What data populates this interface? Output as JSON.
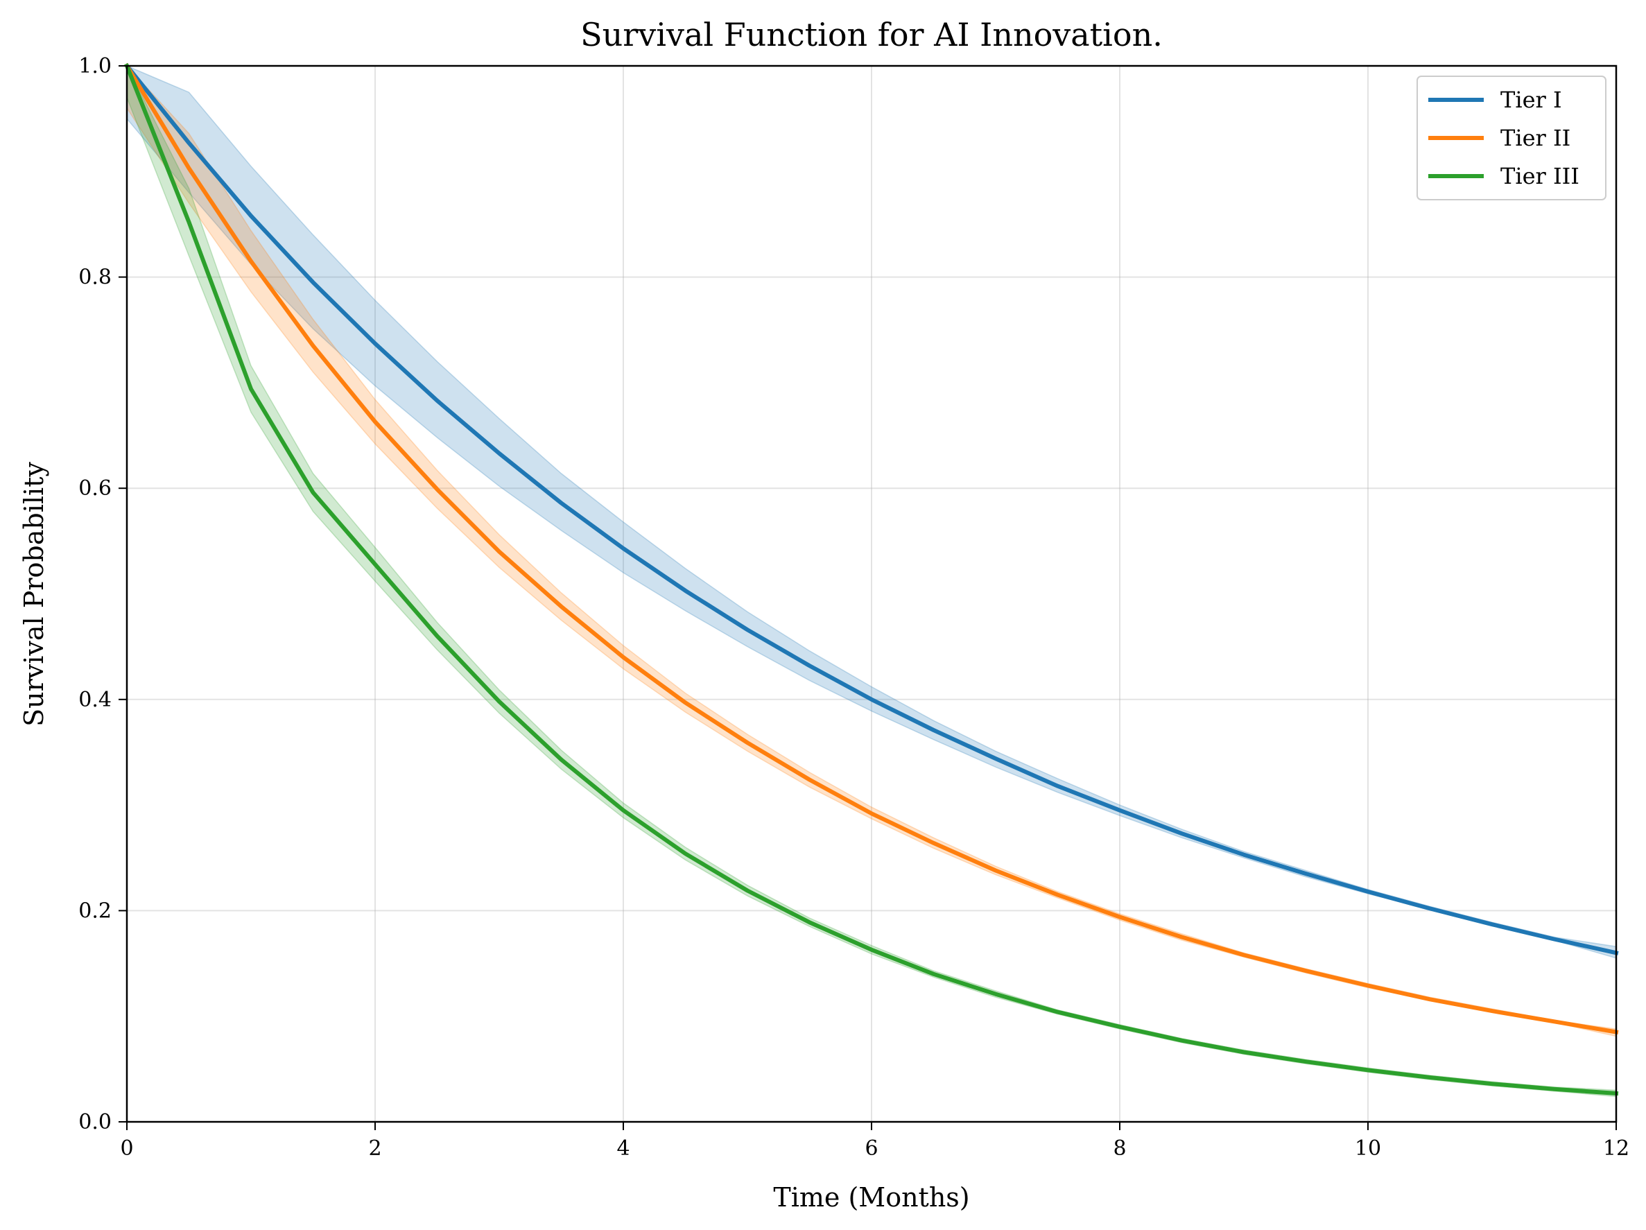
{
  "chart_data": {
    "type": "line",
    "title": "Survival Function for AI Innovation.",
    "xlabel": "Time (Months)",
    "ylabel": "Survival Probability",
    "xlim": [
      0,
      12
    ],
    "ylim": [
      0,
      1.0
    ],
    "xticks": [
      0,
      2,
      4,
      6,
      8,
      10,
      12
    ],
    "xtick_labels": [
      "0",
      "2",
      "4",
      "6",
      "8",
      "10",
      "12"
    ],
    "yticks": [
      0,
      0.2,
      0.4,
      0.6,
      0.8,
      1.0
    ],
    "ytick_labels": [
      "0.0",
      "0.2",
      "0.4",
      "0.6",
      "0.8",
      "1.0"
    ],
    "grid": true,
    "legend_position": "top-right",
    "x": [
      0,
      0.5,
      1,
      1.5,
      2,
      2.5,
      3,
      3.5,
      4,
      4.5,
      5,
      5.5,
      6,
      6.5,
      7,
      7.5,
      8,
      8.5,
      9,
      9.5,
      10,
      10.5,
      11,
      11.5,
      12
    ],
    "series": [
      {
        "name": "Tier I",
        "color": "#1f77b4",
        "values": [
          1.0,
          0.927,
          0.858,
          0.795,
          0.737,
          0.683,
          0.633,
          0.586,
          0.543,
          0.503,
          0.466,
          0.432,
          0.4,
          0.371,
          0.344,
          0.318,
          0.295,
          0.273,
          0.253,
          0.235,
          0.218,
          0.202,
          0.187,
          0.173,
          0.16
        ],
        "lower": [
          0.95,
          0.88,
          0.812,
          0.751,
          0.697,
          0.648,
          0.602,
          0.56,
          0.52,
          0.484,
          0.45,
          0.418,
          0.389,
          0.362,
          0.336,
          0.312,
          0.29,
          0.269,
          0.25,
          0.232,
          0.216,
          0.201,
          0.186,
          0.172,
          0.155
        ],
        "upper": [
          1.0,
          0.975,
          0.905,
          0.84,
          0.778,
          0.72,
          0.666,
          0.614,
          0.568,
          0.524,
          0.483,
          0.446,
          0.412,
          0.38,
          0.351,
          0.325,
          0.3,
          0.277,
          0.256,
          0.238,
          0.22,
          0.204,
          0.189,
          0.175,
          0.166
        ]
      },
      {
        "name": "Tier II",
        "color": "#ff7f0e",
        "values": [
          1.0,
          0.903,
          0.815,
          0.735,
          0.663,
          0.599,
          0.54,
          0.488,
          0.44,
          0.397,
          0.359,
          0.324,
          0.292,
          0.264,
          0.238,
          0.215,
          0.194,
          0.175,
          0.158,
          0.143,
          0.129,
          0.116,
          0.105,
          0.095,
          0.085
        ],
        "lower": [
          0.96,
          0.87,
          0.786,
          0.71,
          0.642,
          0.581,
          0.525,
          0.475,
          0.429,
          0.388,
          0.351,
          0.317,
          0.287,
          0.259,
          0.234,
          0.212,
          0.191,
          0.172,
          0.156,
          0.141,
          0.127,
          0.115,
          0.104,
          0.094,
          0.081
        ],
        "upper": [
          1.0,
          0.936,
          0.844,
          0.76,
          0.684,
          0.617,
          0.556,
          0.501,
          0.451,
          0.406,
          0.367,
          0.331,
          0.298,
          0.269,
          0.242,
          0.218,
          0.197,
          0.178,
          0.16,
          0.145,
          0.131,
          0.118,
          0.107,
          0.096,
          0.088
        ]
      },
      {
        "name": "Tier III",
        "color": "#2ca02c",
        "values": [
          1.0,
          0.852,
          0.694,
          0.596,
          0.528,
          0.46,
          0.398,
          0.343,
          0.295,
          0.254,
          0.219,
          0.189,
          0.163,
          0.14,
          0.121,
          0.104,
          0.09,
          0.077,
          0.066,
          0.057,
          0.049,
          0.042,
          0.036,
          0.031,
          0.027
        ],
        "lower": [
          0.97,
          0.82,
          0.672,
          0.578,
          0.512,
          0.447,
          0.387,
          0.334,
          0.288,
          0.248,
          0.214,
          0.185,
          0.159,
          0.137,
          0.118,
          0.102,
          0.088,
          0.075,
          0.064,
          0.055,
          0.047,
          0.04,
          0.034,
          0.029,
          0.024
        ],
        "upper": [
          1.0,
          0.884,
          0.716,
          0.614,
          0.544,
          0.473,
          0.409,
          0.352,
          0.302,
          0.26,
          0.224,
          0.193,
          0.167,
          0.143,
          0.124,
          0.106,
          0.092,
          0.079,
          0.068,
          0.059,
          0.051,
          0.044,
          0.038,
          0.033,
          0.03
        ]
      }
    ]
  }
}
